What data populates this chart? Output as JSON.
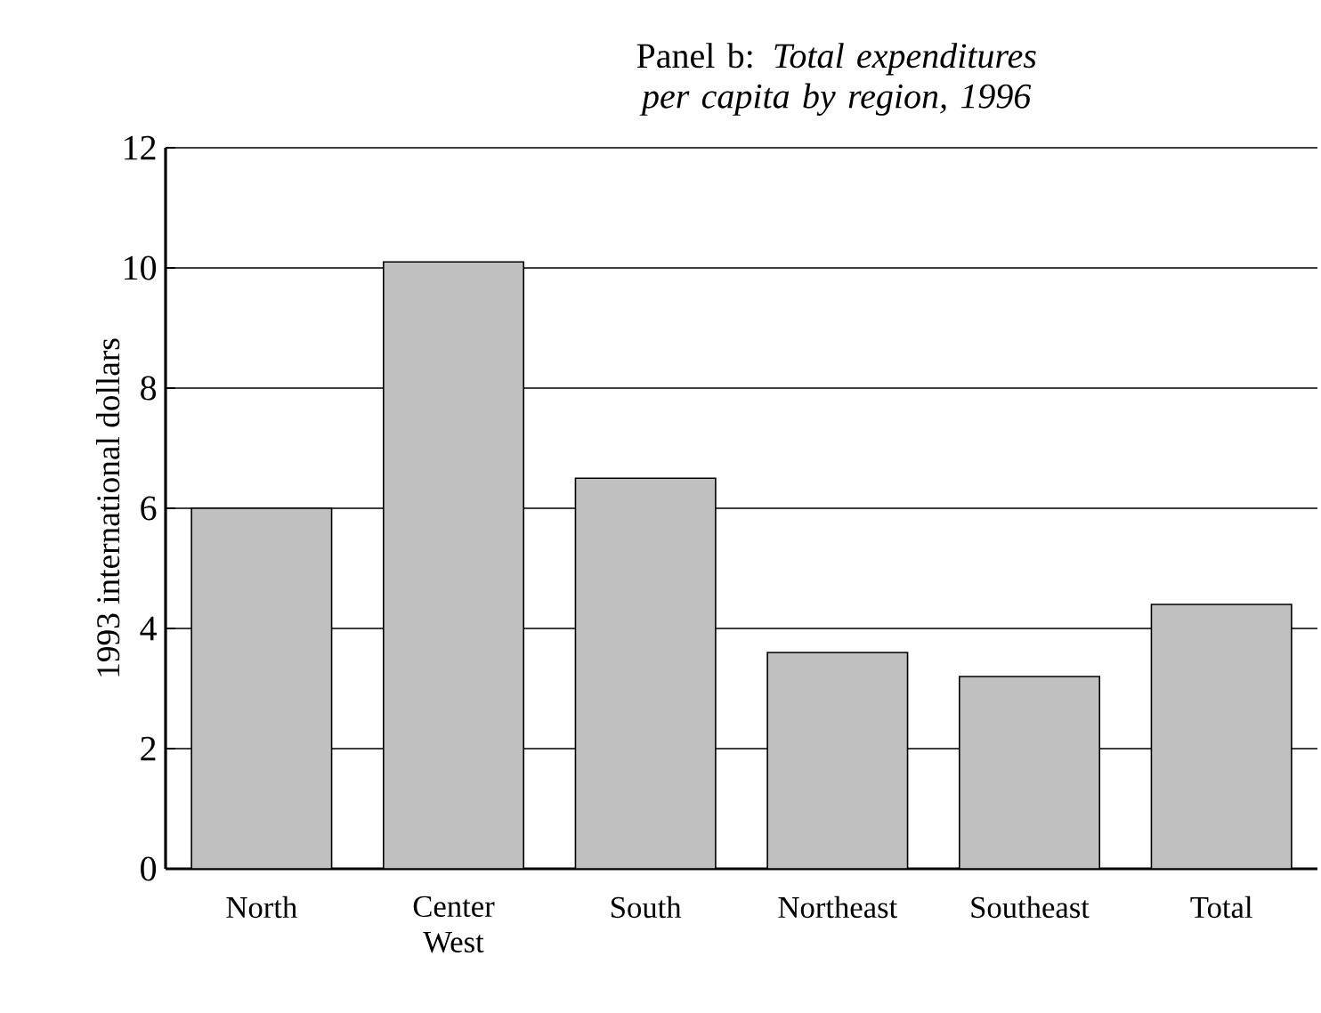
{
  "chart_data": {
    "type": "bar",
    "title": "Panel b: *Total expenditures per capita by region, 1996*",
    "ylabel": "1993 international dollars",
    "categories": [
      "North",
      "Center West",
      "South",
      "Northeast",
      "Southeast",
      "Total"
    ],
    "values": [
      6.0,
      10.1,
      6.5,
      3.6,
      3.2,
      4.4
    ],
    "color": "#c0c0c0",
    "ylim": [
      0,
      12
    ],
    "yticks": [
      0,
      2,
      4,
      6,
      8,
      10,
      12
    ],
    "grid": "y"
  }
}
